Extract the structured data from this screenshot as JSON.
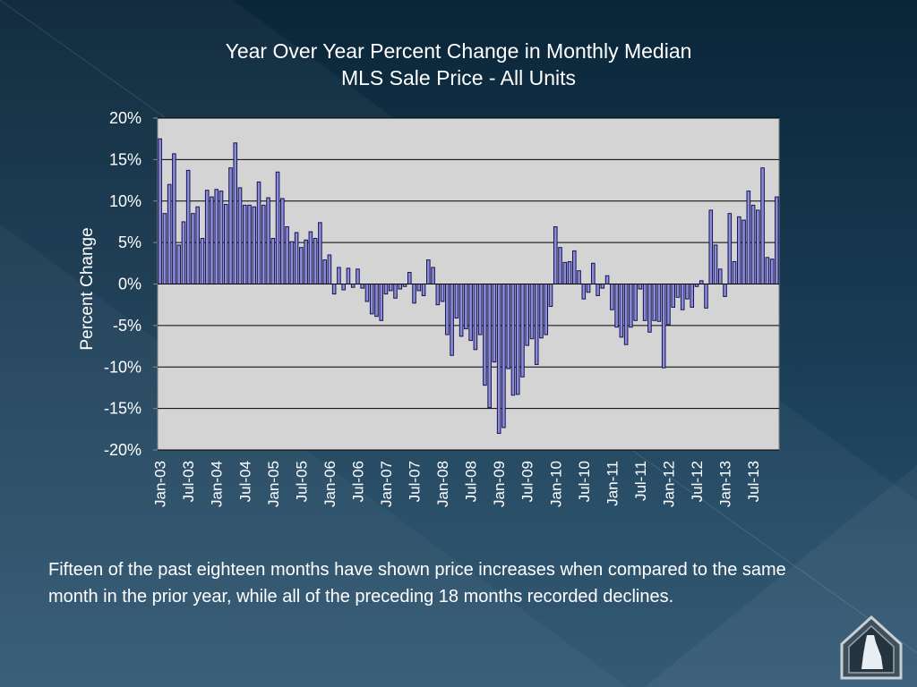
{
  "page": {
    "caption": "Fifteen of the past eighteen months have shown price increases when compared to the same month in the prior year, while all of the preceding 18 months recorded declines.",
    "logo_icon": "house-state-logo-icon"
  },
  "chart_data": {
    "type": "bar",
    "title_lines": [
      "Year Over Year Percent Change in Monthly Median",
      "MLS Sale Price - All Units"
    ],
    "ylabel": "Percent Change",
    "xlabel": "",
    "ylim": [
      -20,
      20
    ],
    "yticks": [
      "20%",
      "15%",
      "10%",
      "5%",
      "0%",
      "-5%",
      "-10%",
      "-15%",
      "-20%"
    ],
    "ytick_values": [
      20,
      15,
      10,
      5,
      0,
      -5,
      -10,
      -15,
      -20
    ],
    "xtick_labels": [
      "Jan-03",
      "Jul-03",
      "Jan-04",
      "Jul-04",
      "Jan-05",
      "Jul-05",
      "Jan-06",
      "Jul-06",
      "Jan-07",
      "Jul-07",
      "Jan-08",
      "Jul-08",
      "Jan-09",
      "Jul-09",
      "Jan-10",
      "Jul-10",
      "Jan-11",
      "Jul-11",
      "Jan-12",
      "Jul-12",
      "Jan-13",
      "Jul-13"
    ],
    "start": "Jan-03",
    "bar_color": "#8c8cd8",
    "bar_stroke": "#141450",
    "plot_bg": "#d4d4d4",
    "grid": true,
    "values": [
      17.5,
      8.5,
      12,
      15.7,
      4.7,
      7.5,
      13.7,
      8.5,
      9.3,
      5.5,
      11.3,
      10.5,
      11.4,
      11.2,
      9.6,
      14,
      17,
      11.6,
      9.5,
      9.5,
      9.3,
      12.3,
      9.5,
      10.4,
      5.5,
      13.5,
      10.3,
      6.9,
      5.1,
      6.2,
      4.4,
      5.3,
      6.3,
      5.5,
      7.4,
      2.9,
      3.5,
      -1.2,
      2,
      -0.7,
      1.9,
      -0.4,
      1.8,
      -0.5,
      -2.1,
      -3.6,
      -3.9,
      -4.4,
      -1.2,
      -0.8,
      -1.7,
      -0.6,
      -0.3,
      1.4,
      -2.3,
      -0.8,
      -1.4,
      2.9,
      2,
      -2.5,
      -2.1,
      -6.1,
      -8.6,
      -4.1,
      -6.3,
      -5.4,
      -6.8,
      -7.9,
      -6.1,
      -12.2,
      -14.9,
      -9.4,
      -18,
      -17.3,
      -10.2,
      -13.4,
      -13.3,
      -11.2,
      -7.4,
      -6.6,
      -9.7,
      -6.5,
      -6.1,
      -2.7,
      6.9,
      4.4,
      2.6,
      2.7,
      4,
      1.6,
      -1.8,
      -1,
      2.5,
      -1.4,
      -0.5,
      1,
      -3.1,
      -5.2,
      -6.4,
      -7.3,
      -5.2,
      -4.4,
      -0.6,
      -4.4,
      -5.8,
      -4.4,
      -4.5,
      -10.1,
      -4.9,
      -2.8,
      -1.6,
      -3.1,
      -1.8,
      -2.8,
      -0.3,
      0.4,
      -2.9,
      8.9,
      4.7,
      1.8,
      -1.5,
      8.5,
      2.7,
      8.1,
      7.7,
      11.2,
      9.5,
      8.9,
      14,
      3.2,
      3,
      10.5
    ]
  }
}
